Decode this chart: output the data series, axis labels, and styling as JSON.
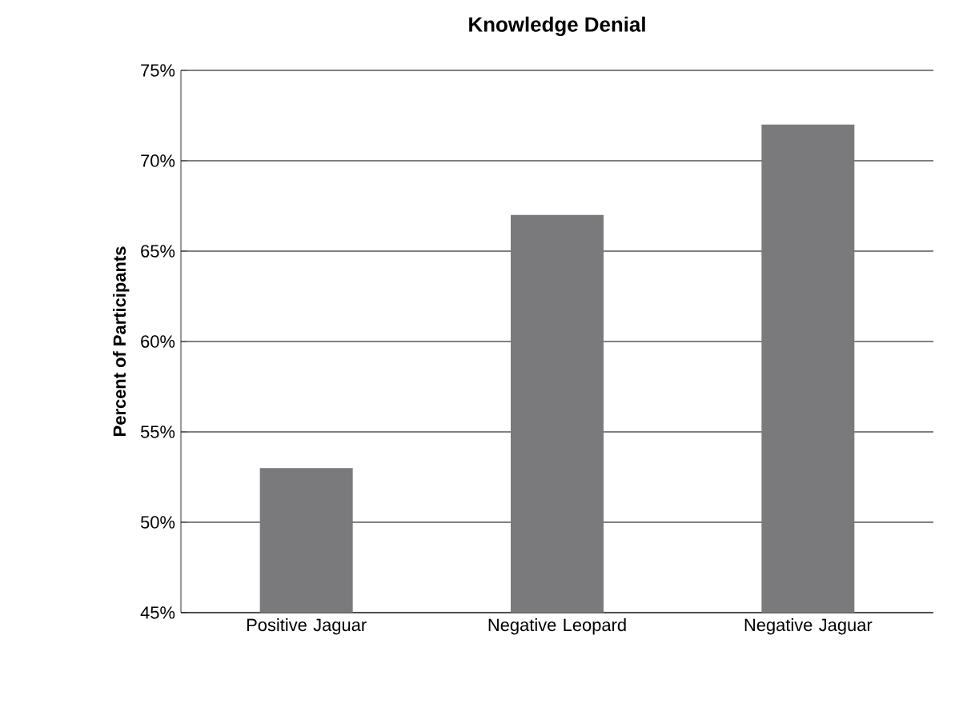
{
  "chart_data": {
    "type": "bar",
    "title": "Knowledge Denial",
    "ylabel": "Percent of Participants",
    "categories": [
      "Positive Jaguar",
      "Negative Leopard",
      "Negative Jaguar"
    ],
    "values": [
      53,
      67,
      72
    ],
    "color": "#7a7a7c",
    "ylim": [
      45,
      75
    ],
    "yticks": [
      {
        "value": 45,
        "label": "45%"
      },
      {
        "value": 50,
        "label": "50%"
      },
      {
        "value": 55,
        "label": "55%"
      },
      {
        "value": 60,
        "label": "60%"
      },
      {
        "value": 65,
        "label": "65%"
      },
      {
        "value": 70,
        "label": "70%"
      },
      {
        "value": 75,
        "label": "75%"
      }
    ],
    "grid": "y"
  }
}
